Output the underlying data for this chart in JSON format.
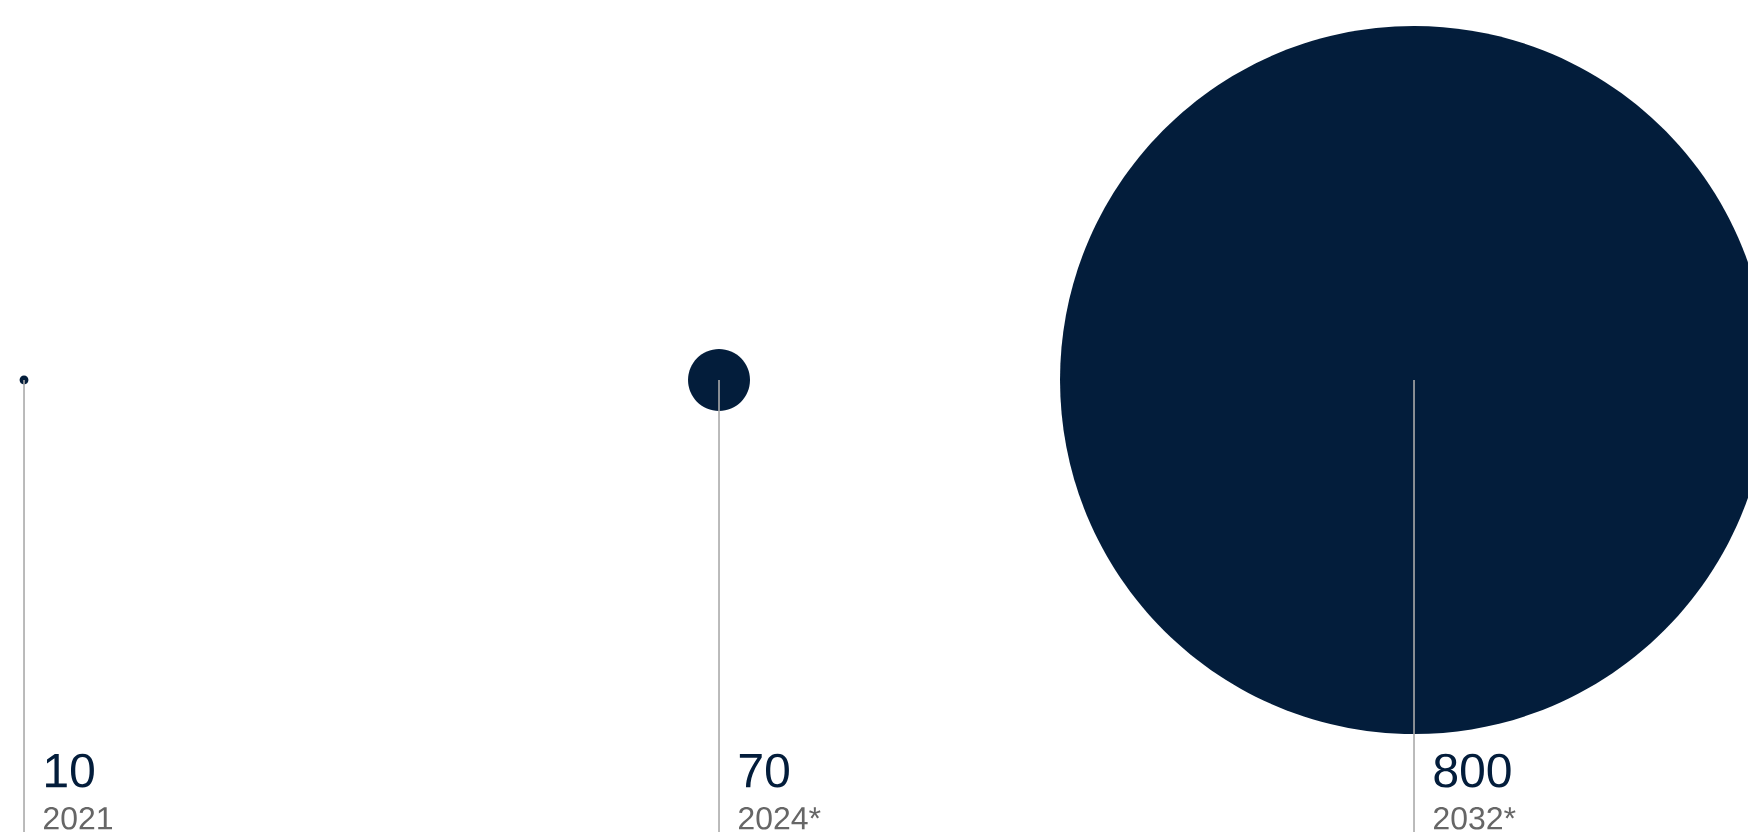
{
  "chart_data": {
    "type": "other",
    "categories": [
      "2021",
      "2024*",
      "2032*"
    ],
    "values": [
      10,
      70,
      800
    ],
    "data_labels": true,
    "color": "#031d3b"
  }
}
